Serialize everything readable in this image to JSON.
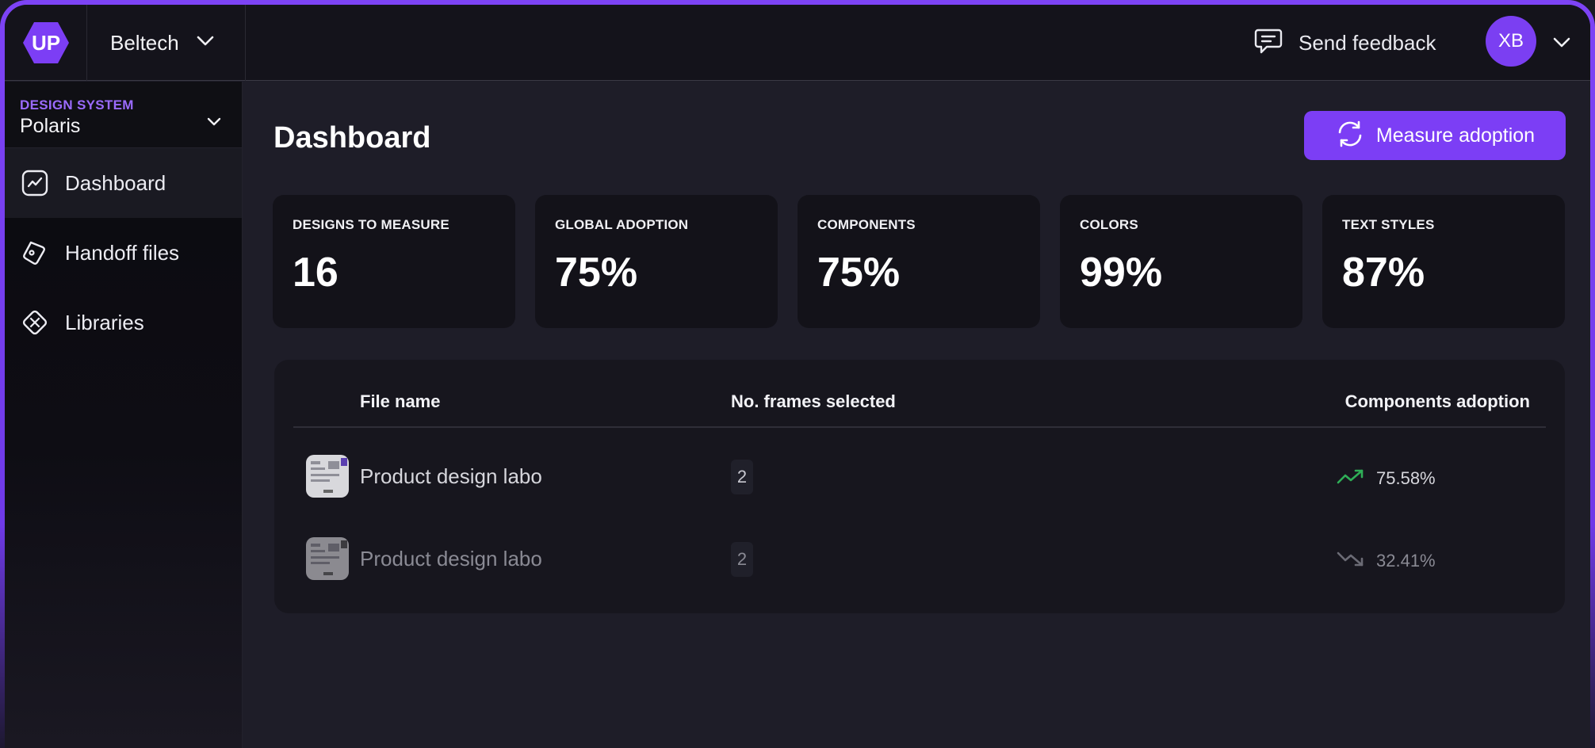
{
  "app": {
    "logo_text": "UP",
    "org_name": "Beltech",
    "feedback_label": "Send feedback",
    "avatar_initials": "XB",
    "accent": "#7c3ef5"
  },
  "sidebar": {
    "design_system_label": "DESIGN SYSTEM",
    "design_system_value": "Polaris",
    "items": [
      {
        "label": "Dashboard",
        "icon": "chart-line-icon",
        "active": true
      },
      {
        "label": "Handoff files",
        "icon": "tag-icon",
        "active": false
      },
      {
        "label": "Libraries",
        "icon": "components-icon",
        "active": false
      }
    ]
  },
  "main": {
    "title": "Dashboard",
    "measure_button": "Measure adoption",
    "stats": [
      {
        "label": "DESIGNS TO MEASURE",
        "value": "16"
      },
      {
        "label": "GLOBAL ADOPTION",
        "value": "75%"
      },
      {
        "label": "COMPONENTS",
        "value": "75%"
      },
      {
        "label": "COLORS",
        "value": "99%"
      },
      {
        "label": "TEXT STYLES",
        "value": "87%"
      }
    ],
    "table": {
      "columns": [
        "File name",
        "No. frames selected",
        "Components adoption"
      ],
      "rows": [
        {
          "file_name": "Product design labo",
          "frames": "2",
          "adoption": "75.58%",
          "trend": "up",
          "trend_color": "#2fae57"
        },
        {
          "file_name": "Product design labo",
          "frames": "2",
          "adoption": "32.41%",
          "trend": "down",
          "trend_color": "#6b6b75"
        }
      ]
    }
  }
}
